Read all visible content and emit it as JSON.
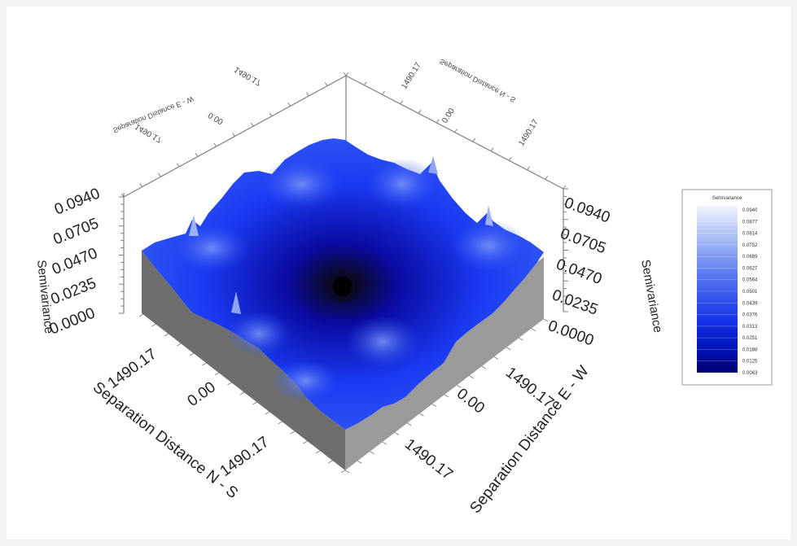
{
  "chart_data": {
    "type": "surface",
    "title": "",
    "z_label": "Semivariance",
    "x_label": "Separation Distance E - W",
    "y_label": "Separation Distance N - S",
    "x_ticks": [
      "1490.17",
      "0.00",
      "1490.17"
    ],
    "y_ticks": [
      "1490.17",
      "0.00",
      "1490.17"
    ],
    "z_ticks": [
      "0.0000",
      "0.0235",
      "0.0470",
      "0.0705",
      "0.0940"
    ],
    "z_range": [
      0,
      0.094
    ],
    "x_range": [
      -1490.17,
      1490.17
    ],
    "y_range": [
      -1490.17,
      1490.17
    ],
    "colormap": [
      "#0a0a3a",
      "#0000b0",
      "#1530f0",
      "#3a5af0",
      "#7a96ee",
      "#f0f4ff"
    ],
    "legend": {
      "title": "Semivariance",
      "values": [
        "0.0940",
        "0.0877",
        "0.0814",
        "0.0752",
        "0.0689",
        "0.0627",
        "0.0564",
        "0.0501",
        "0.0439",
        "0.0376",
        "0.0313",
        "0.0251",
        "0.0188",
        "0.0125",
        "0.0063"
      ]
    }
  }
}
